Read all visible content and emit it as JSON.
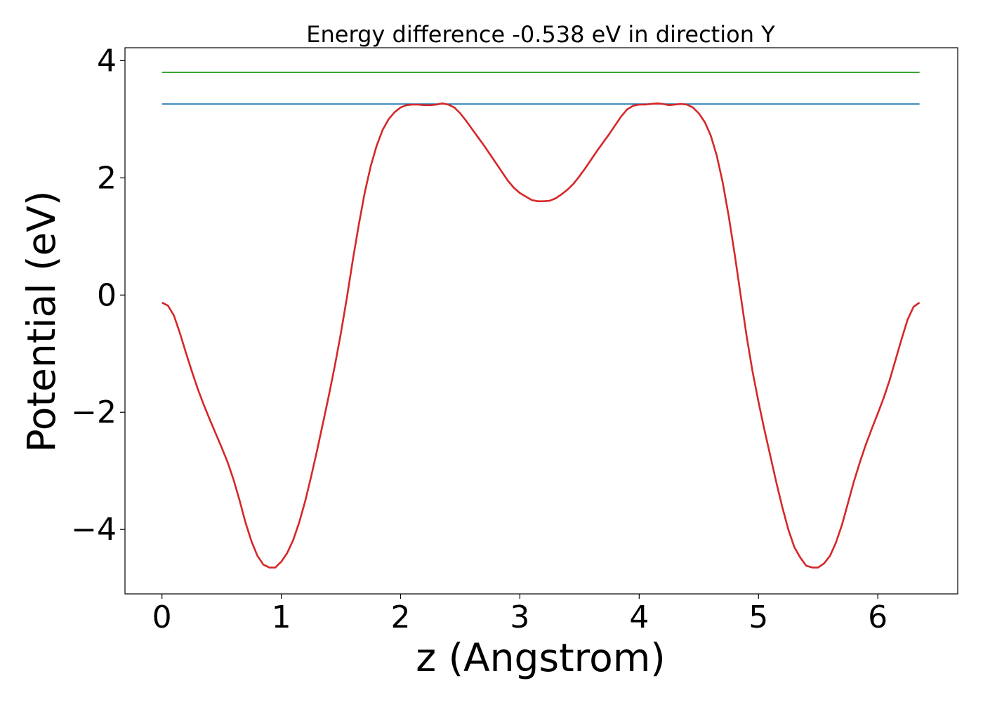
{
  "chart_data": {
    "type": "line",
    "title": "Energy difference -0.538 eV in direction Y",
    "xlabel": "z (Angstrom)",
    "ylabel": "Potential (eV)",
    "xlim": [
      -0.31,
      6.67
    ],
    "ylim": [
      -5.1,
      4.22
    ],
    "xticks": [
      0,
      1,
      2,
      3,
      4,
      5,
      6
    ],
    "xtick_labels": [
      "0",
      "1",
      "2",
      "3",
      "4",
      "5",
      "6"
    ],
    "yticks": [
      -4,
      -2,
      0,
      2,
      4
    ],
    "ytick_labels": [
      "−4",
      "−2",
      "0",
      "2",
      "4"
    ],
    "grid": false,
    "series": [
      {
        "color": "#2ca02c",
        "x": [
          0,
          6.35
        ],
        "y": [
          3.8,
          3.8
        ]
      },
      {
        "color": "#1f77b4",
        "x": [
          0,
          6.35
        ],
        "y": [
          3.26,
          3.26
        ]
      },
      {
        "color": "#d62728",
        "x": [
          0.0,
          0.05,
          0.1,
          0.15,
          0.2,
          0.25,
          0.3,
          0.35,
          0.4,
          0.45,
          0.5,
          0.55,
          0.6,
          0.65,
          0.7,
          0.75,
          0.8,
          0.85,
          0.9,
          0.95,
          1.0,
          1.05,
          1.1,
          1.15,
          1.2,
          1.25,
          1.3,
          1.35,
          1.4,
          1.45,
          1.5,
          1.55,
          1.6,
          1.65,
          1.7,
          1.75,
          1.8,
          1.85,
          1.9,
          1.95,
          2.0,
          2.05,
          2.1,
          2.15,
          2.2,
          2.25,
          2.3,
          2.35,
          2.4,
          2.45,
          2.5,
          2.55,
          2.6,
          2.65,
          2.7,
          2.75,
          2.8,
          2.85,
          2.9,
          2.95,
          3.0,
          3.05,
          3.1,
          3.15,
          3.2,
          3.25,
          3.3,
          3.35,
          3.4,
          3.45,
          3.5,
          3.55,
          3.6,
          3.65,
          3.7,
          3.75,
          3.8,
          3.85,
          3.9,
          3.95,
          4.0,
          4.05,
          4.1,
          4.15,
          4.2,
          4.25,
          4.3,
          4.35,
          4.4,
          4.45,
          4.5,
          4.55,
          4.6,
          4.65,
          4.7,
          4.75,
          4.8,
          4.85,
          4.9,
          4.95,
          5.0,
          5.05,
          5.1,
          5.15,
          5.2,
          5.25,
          5.3,
          5.35,
          5.4,
          5.45,
          5.5,
          5.55,
          5.6,
          5.65,
          5.7,
          5.75,
          5.8,
          5.85,
          5.9,
          5.95,
          6.0,
          6.05,
          6.1,
          6.15,
          6.2,
          6.25,
          6.3,
          6.35
        ],
        "y": [
          -0.13,
          -0.18,
          -0.35,
          -0.65,
          -0.98,
          -1.3,
          -1.6,
          -1.87,
          -2.12,
          -2.36,
          -2.6,
          -2.85,
          -3.15,
          -3.5,
          -3.88,
          -4.2,
          -4.45,
          -4.6,
          -4.65,
          -4.65,
          -4.55,
          -4.4,
          -4.18,
          -3.88,
          -3.52,
          -3.1,
          -2.65,
          -2.18,
          -1.7,
          -1.2,
          -0.65,
          -0.05,
          0.6,
          1.2,
          1.75,
          2.2,
          2.55,
          2.82,
          3.0,
          3.12,
          3.2,
          3.24,
          3.25,
          3.25,
          3.24,
          3.24,
          3.25,
          3.27,
          3.25,
          3.2,
          3.1,
          2.97,
          2.83,
          2.69,
          2.55,
          2.4,
          2.25,
          2.1,
          1.95,
          1.83,
          1.74,
          1.68,
          1.62,
          1.6,
          1.6,
          1.61,
          1.65,
          1.72,
          1.8,
          1.9,
          2.03,
          2.17,
          2.32,
          2.47,
          2.61,
          2.75,
          2.9,
          3.05,
          3.17,
          3.23,
          3.25,
          3.25,
          3.26,
          3.27,
          3.26,
          3.24,
          3.25,
          3.26,
          3.25,
          3.2,
          3.1,
          2.95,
          2.72,
          2.38,
          1.92,
          1.35,
          0.7,
          0.0,
          -0.7,
          -1.3,
          -1.82,
          -2.3,
          -2.75,
          -3.2,
          -3.62,
          -4.0,
          -4.3,
          -4.48,
          -4.62,
          -4.65,
          -4.65,
          -4.58,
          -4.45,
          -4.22,
          -3.92,
          -3.55,
          -3.18,
          -2.85,
          -2.55,
          -2.28,
          -2.02,
          -1.75,
          -1.45,
          -1.1,
          -0.75,
          -0.42,
          -0.2,
          -0.13
        ]
      }
    ]
  }
}
